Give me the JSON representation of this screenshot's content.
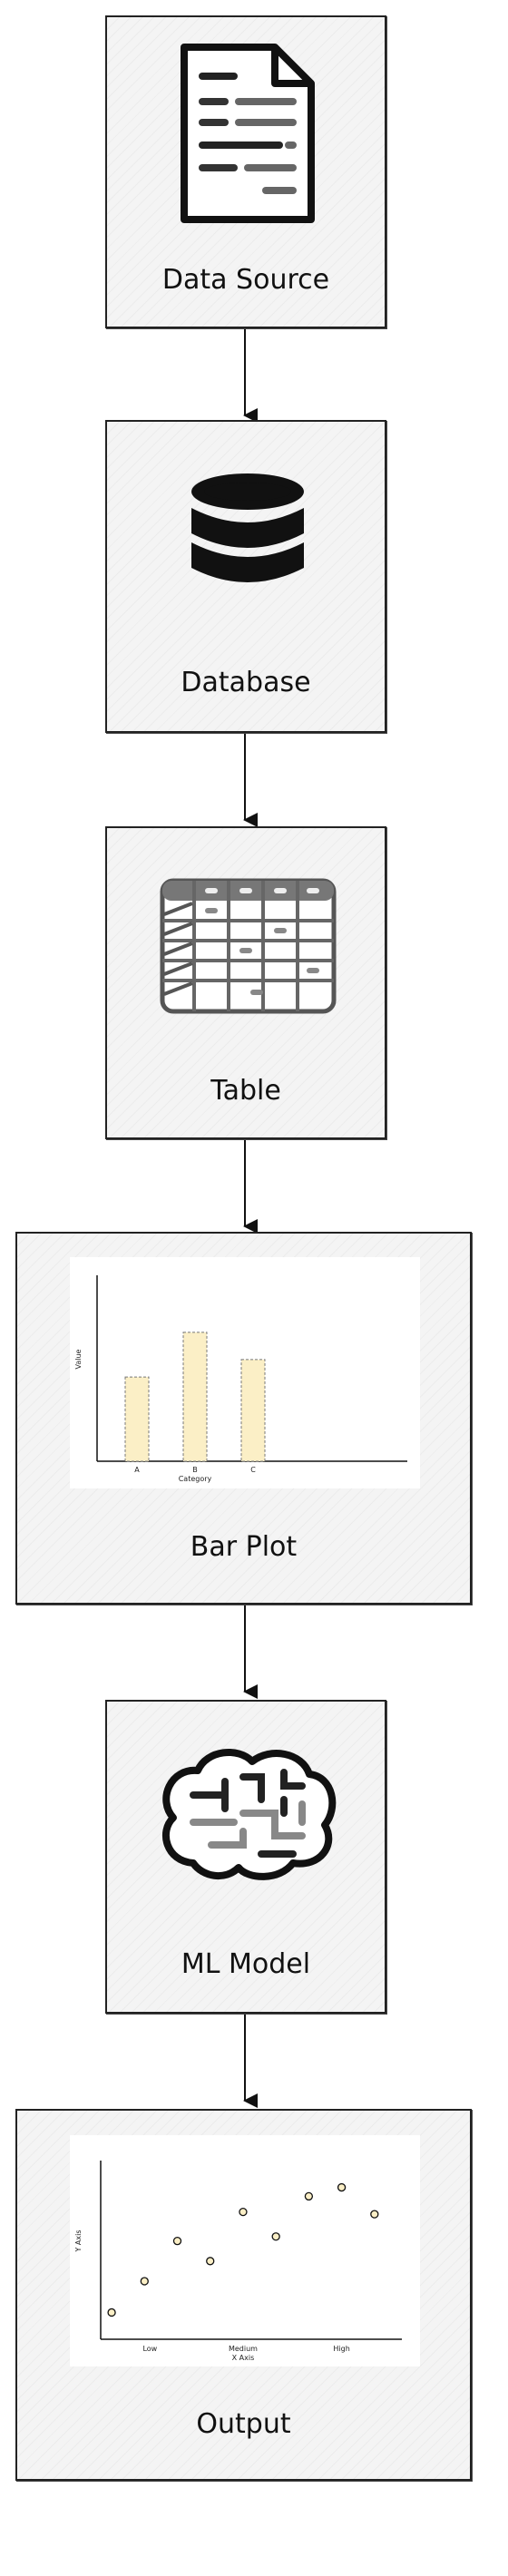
{
  "nodes": [
    {
      "label": "Data Source",
      "icon": "document-icon"
    },
    {
      "label": "Database",
      "icon": "database-icon"
    },
    {
      "label": "Table",
      "icon": "table-grid-icon"
    },
    {
      "label": "Bar Plot",
      "icon": "bar-chart-icon"
    },
    {
      "label": "ML Model",
      "icon": "brain-icon"
    },
    {
      "label": "Output",
      "icon": "scatter-plot-icon"
    }
  ],
  "bar_plot": {
    "categories": [
      "A",
      "B",
      "C"
    ],
    "values": [
      3.4,
      5.2,
      4.1
    ],
    "ylim": [
      0,
      7.5
    ],
    "xlabel": "Category",
    "ylabel": "Value",
    "bar_color": "#fbefc6"
  },
  "output_plot": {
    "x_ticks": [
      "Low",
      "Medium",
      "High"
    ],
    "points": [
      [
        0.2,
        1.2
      ],
      [
        0.8,
        2.6
      ],
      [
        1.4,
        4.4
      ],
      [
        2.0,
        3.5
      ],
      [
        2.6,
        5.7
      ],
      [
        3.2,
        4.6
      ],
      [
        3.8,
        6.4
      ],
      [
        4.4,
        6.8
      ],
      [
        5.0,
        5.6
      ]
    ],
    "xlim": [
      0,
      5.5
    ],
    "ylim": [
      0,
      8
    ],
    "xlabel": "X Axis",
    "ylabel": "Y Axis",
    "marker_color": "#fbefc6"
  },
  "colors": {
    "stroke": "#111111",
    "box": "#f4f4f4"
  }
}
